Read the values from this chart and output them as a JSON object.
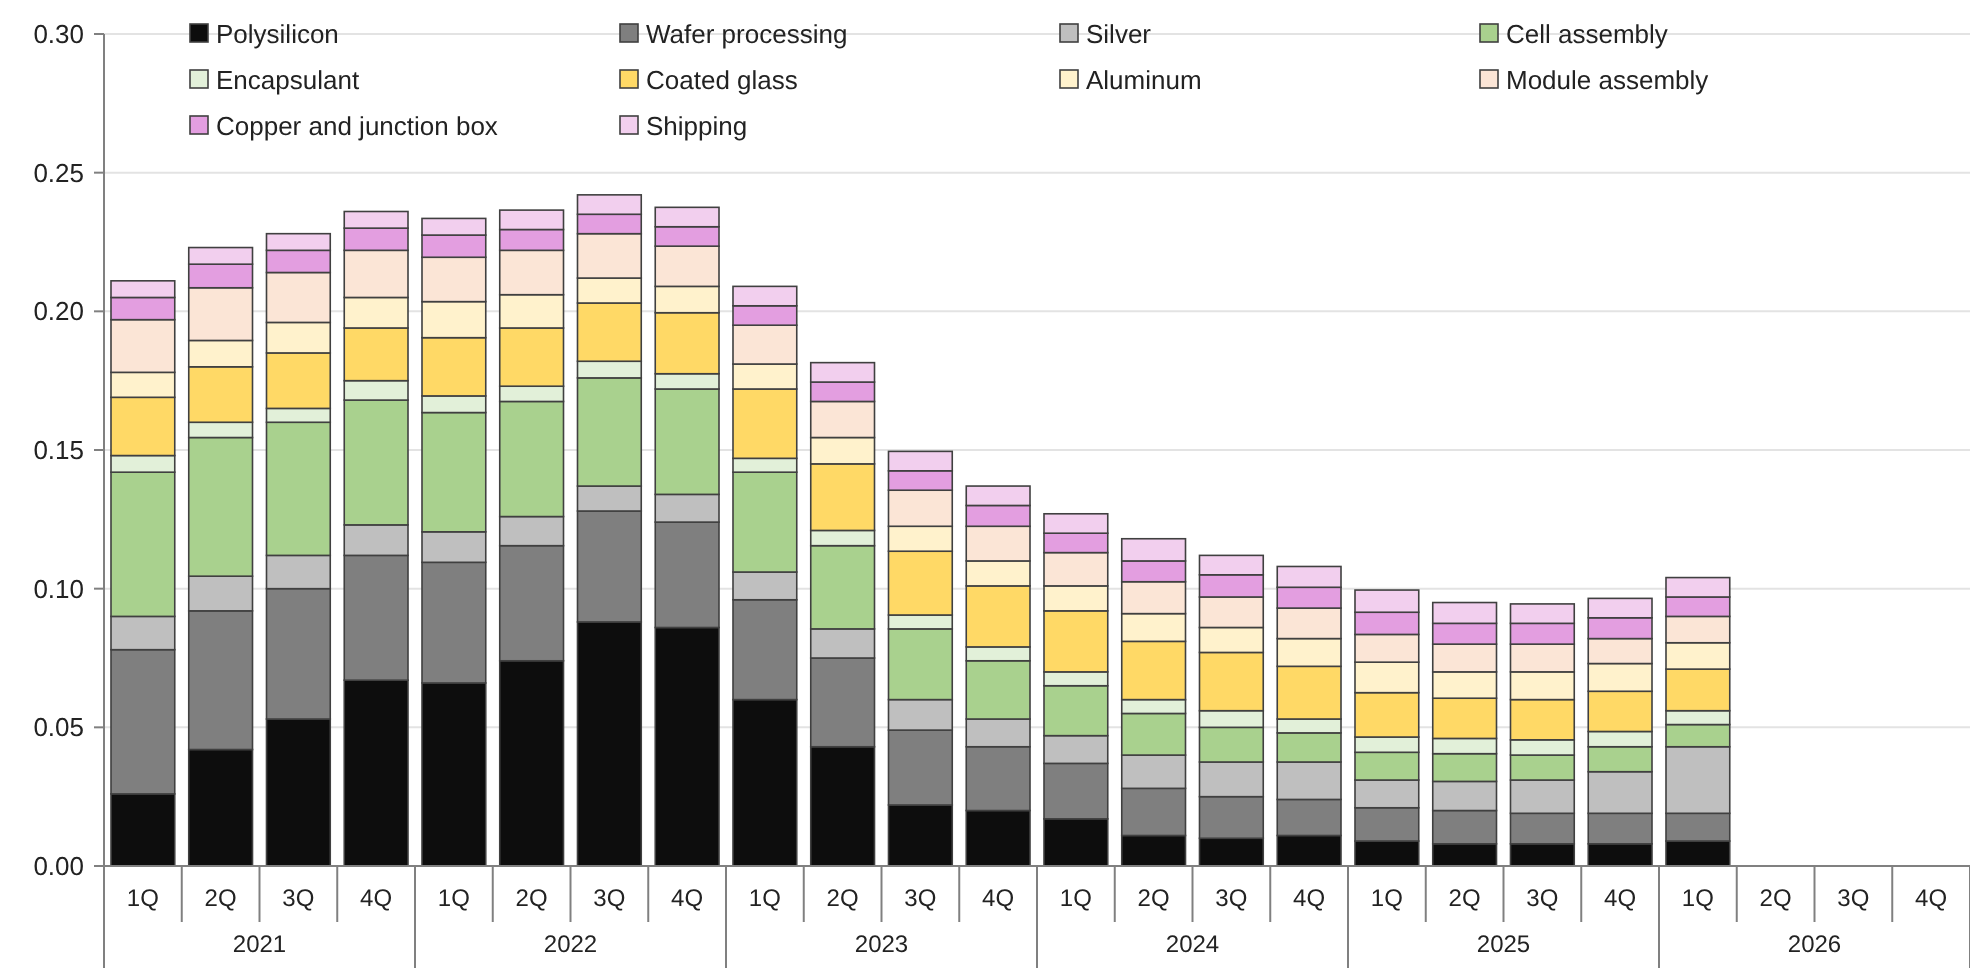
{
  "chart_data": {
    "type": "bar",
    "stacked": true,
    "categories": [
      "1Q",
      "2Q",
      "3Q",
      "4Q",
      "1Q",
      "2Q",
      "3Q",
      "4Q",
      "1Q",
      "2Q",
      "3Q",
      "4Q",
      "1Q",
      "2Q",
      "3Q",
      "4Q",
      "1Q",
      "2Q",
      "3Q",
      "4Q",
      "1Q",
      "2Q",
      "3Q",
      "4Q"
    ],
    "annotations": [
      "2021",
      "2022",
      "2023",
      "2024",
      "2025",
      "2026"
    ],
    "ylim": [
      0,
      0.3
    ],
    "yticks": [
      {
        "value": 0,
        "label": "0.00"
      },
      {
        "value": 0.05,
        "label": "0.05"
      },
      {
        "value": 0.1,
        "label": "0.10"
      },
      {
        "value": 0.15,
        "label": "0.15"
      },
      {
        "value": 0.2,
        "label": "0.20"
      },
      {
        "value": 0.25,
        "label": "0.25"
      },
      {
        "value": 0.3,
        "label": "0.30"
      }
    ],
    "grid": "y",
    "legend": "top",
    "series": [
      {
        "name": "Polysilicon",
        "color": "#0d0d0d",
        "values": [
          0.026,
          0.042,
          0.053,
          0.067,
          0.066,
          0.074,
          0.088,
          0.086,
          0.06,
          0.043,
          0.022,
          0.02,
          0.017,
          0.011,
          0.01,
          0.011,
          0.009,
          0.008,
          0.008,
          0.008,
          0.009,
          null,
          null,
          null
        ]
      },
      {
        "name": "Wafer processing",
        "color": "#7f7f7f",
        "values": [
          0.052,
          0.05,
          0.047,
          0.045,
          0.0435,
          0.0415,
          0.04,
          0.038,
          0.036,
          0.032,
          0.027,
          0.023,
          0.02,
          0.017,
          0.015,
          0.013,
          0.012,
          0.012,
          0.011,
          0.011,
          0.01,
          null,
          null,
          null
        ]
      },
      {
        "name": "Silver",
        "color": "#bfbfbf",
        "values": [
          0.012,
          0.0125,
          0.012,
          0.011,
          0.011,
          0.0105,
          0.009,
          0.01,
          0.01,
          0.0105,
          0.011,
          0.01,
          0.01,
          0.012,
          0.0125,
          0.0135,
          0.01,
          0.0105,
          0.012,
          0.015,
          0.024,
          null,
          null,
          null
        ]
      },
      {
        "name": "Cell assembly",
        "color": "#a9d18e",
        "values": [
          0.052,
          0.05,
          0.048,
          0.045,
          0.043,
          0.0415,
          0.039,
          0.038,
          0.036,
          0.03,
          0.0255,
          0.021,
          0.018,
          0.015,
          0.0125,
          0.0105,
          0.01,
          0.01,
          0.009,
          0.009,
          0.008,
          null,
          null,
          null
        ]
      },
      {
        "name": "Encapsulant",
        "color": "#e2f0d9",
        "values": [
          0.006,
          0.0055,
          0.005,
          0.007,
          0.006,
          0.0055,
          0.006,
          0.0055,
          0.005,
          0.0055,
          0.005,
          0.005,
          0.005,
          0.005,
          0.006,
          0.005,
          0.0055,
          0.0055,
          0.0055,
          0.0055,
          0.005,
          null,
          null,
          null
        ]
      },
      {
        "name": "Coated glass",
        "color": "#ffd966",
        "values": [
          0.021,
          0.02,
          0.02,
          0.019,
          0.021,
          0.021,
          0.021,
          0.022,
          0.025,
          0.024,
          0.023,
          0.022,
          0.022,
          0.021,
          0.021,
          0.019,
          0.016,
          0.0145,
          0.0145,
          0.0145,
          0.015,
          null,
          null,
          null
        ]
      },
      {
        "name": "Aluminum",
        "color": "#fff2cc",
        "values": [
          0.009,
          0.0095,
          0.011,
          0.011,
          0.013,
          0.012,
          0.009,
          0.0095,
          0.009,
          0.0095,
          0.009,
          0.009,
          0.009,
          0.01,
          0.009,
          0.01,
          0.011,
          0.0095,
          0.01,
          0.01,
          0.0095,
          null,
          null,
          null
        ]
      },
      {
        "name": "Module assembly",
        "color": "#fbe5d6",
        "values": [
          0.019,
          0.019,
          0.018,
          0.017,
          0.016,
          0.016,
          0.016,
          0.0145,
          0.014,
          0.013,
          0.013,
          0.0125,
          0.012,
          0.0115,
          0.011,
          0.011,
          0.01,
          0.01,
          0.01,
          0.009,
          0.0095,
          null,
          null,
          null
        ]
      },
      {
        "name": "Copper and junction box",
        "color": "#e39ee0",
        "values": [
          0.008,
          0.0085,
          0.008,
          0.008,
          0.008,
          0.0075,
          0.007,
          0.007,
          0.007,
          0.007,
          0.007,
          0.0075,
          0.007,
          0.0075,
          0.008,
          0.0075,
          0.008,
          0.0075,
          0.0075,
          0.0075,
          0.007,
          null,
          null,
          null
        ]
      },
      {
        "name": "Shipping",
        "color": "#f2cfee",
        "values": [
          0.006,
          0.006,
          0.006,
          0.006,
          0.006,
          0.007,
          0.007,
          0.007,
          0.007,
          0.007,
          0.007,
          0.007,
          0.007,
          0.008,
          0.007,
          0.0075,
          0.008,
          0.0075,
          0.007,
          0.007,
          0.007,
          null,
          null,
          null
        ]
      }
    ]
  }
}
